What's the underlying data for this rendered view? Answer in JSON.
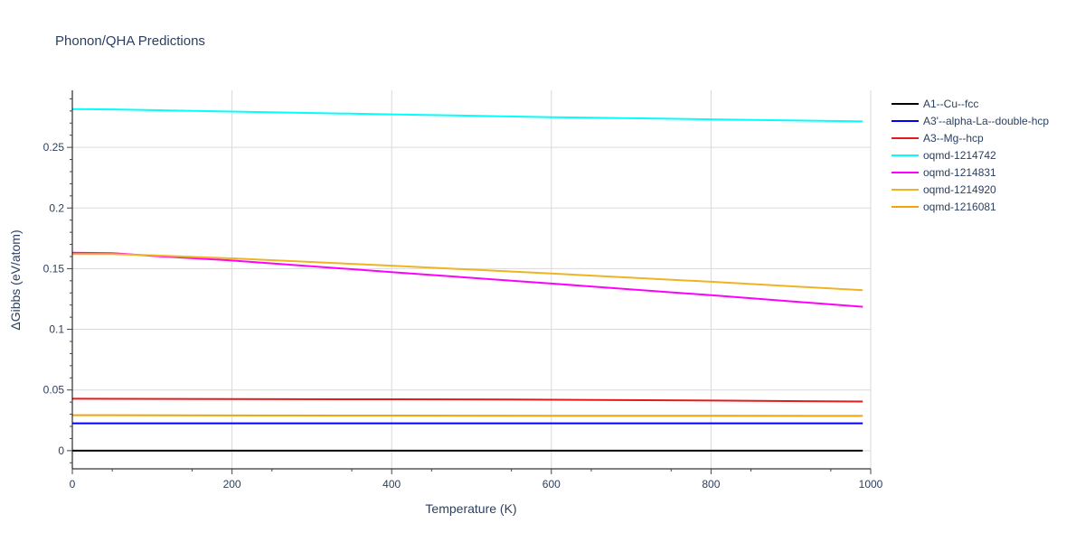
{
  "chart_data": {
    "type": "line",
    "title": "Phonon/QHA Predictions",
    "xlabel": "Temperature (K)",
    "ylabel": "ΔGibbs (eV/atom)",
    "xlim": [
      0,
      1000
    ],
    "ylim": [
      -0.015,
      0.297
    ],
    "xticks": [
      0,
      200,
      400,
      600,
      800,
      1000
    ],
    "xtick_labels": [
      "0",
      "200",
      "400",
      "600",
      "800",
      "1000"
    ],
    "yticks": [
      0,
      0.05,
      0.1,
      0.15,
      0.2,
      0.25
    ],
    "ytick_labels": [
      "0",
      "0.05",
      "0.1",
      "0.15",
      "0.2",
      "0.25"
    ],
    "grid": true,
    "legend_position": "right",
    "series": [
      {
        "name": "A1--Cu--fcc",
        "color": "#000000",
        "x": [
          0,
          990
        ],
        "y": [
          0,
          0
        ]
      },
      {
        "name": "A3'--alpha-La--double-hcp",
        "color": "#0000ff",
        "x": [
          0,
          990
        ],
        "y": [
          0.0225,
          0.0225
        ]
      },
      {
        "name": "A3--Mg--hcp",
        "color": "#e41a1c",
        "x": [
          0,
          200,
          400,
          550,
          800,
          990
        ],
        "y": [
          0.0428,
          0.0425,
          0.0423,
          0.0421,
          0.0413,
          0.0405
        ]
      },
      {
        "name": "oqmd-1214742",
        "color": "#00ffff",
        "x": [
          0,
          50,
          200,
          400,
          600,
          800,
          990
        ],
        "y": [
          0.2815,
          0.2813,
          0.2795,
          0.2772,
          0.2749,
          0.2731,
          0.2714
        ]
      },
      {
        "name": "oqmd-1214831",
        "color": "#ff00ff",
        "x": [
          0,
          50,
          100,
          200,
          400,
          600,
          800,
          990
        ],
        "y": [
          0.1632,
          0.1628,
          0.1605,
          0.1567,
          0.1472,
          0.1377,
          0.1281,
          0.1186
        ]
      },
      {
        "name": "oqmd-1214920",
        "color": "#f0b323",
        "x": [
          0,
          50,
          100,
          200,
          400,
          600,
          800,
          990
        ],
        "y": [
          0.162,
          0.162,
          0.161,
          0.1585,
          0.1525,
          0.146,
          0.1392,
          0.1322
        ]
      },
      {
        "name": "oqmd-1216081",
        "color": "#f0a30a",
        "x": [
          0,
          200,
          400,
          600,
          800,
          990
        ],
        "y": [
          0.0292,
          0.029,
          0.0289,
          0.0288,
          0.0287,
          0.0286
        ]
      }
    ]
  }
}
